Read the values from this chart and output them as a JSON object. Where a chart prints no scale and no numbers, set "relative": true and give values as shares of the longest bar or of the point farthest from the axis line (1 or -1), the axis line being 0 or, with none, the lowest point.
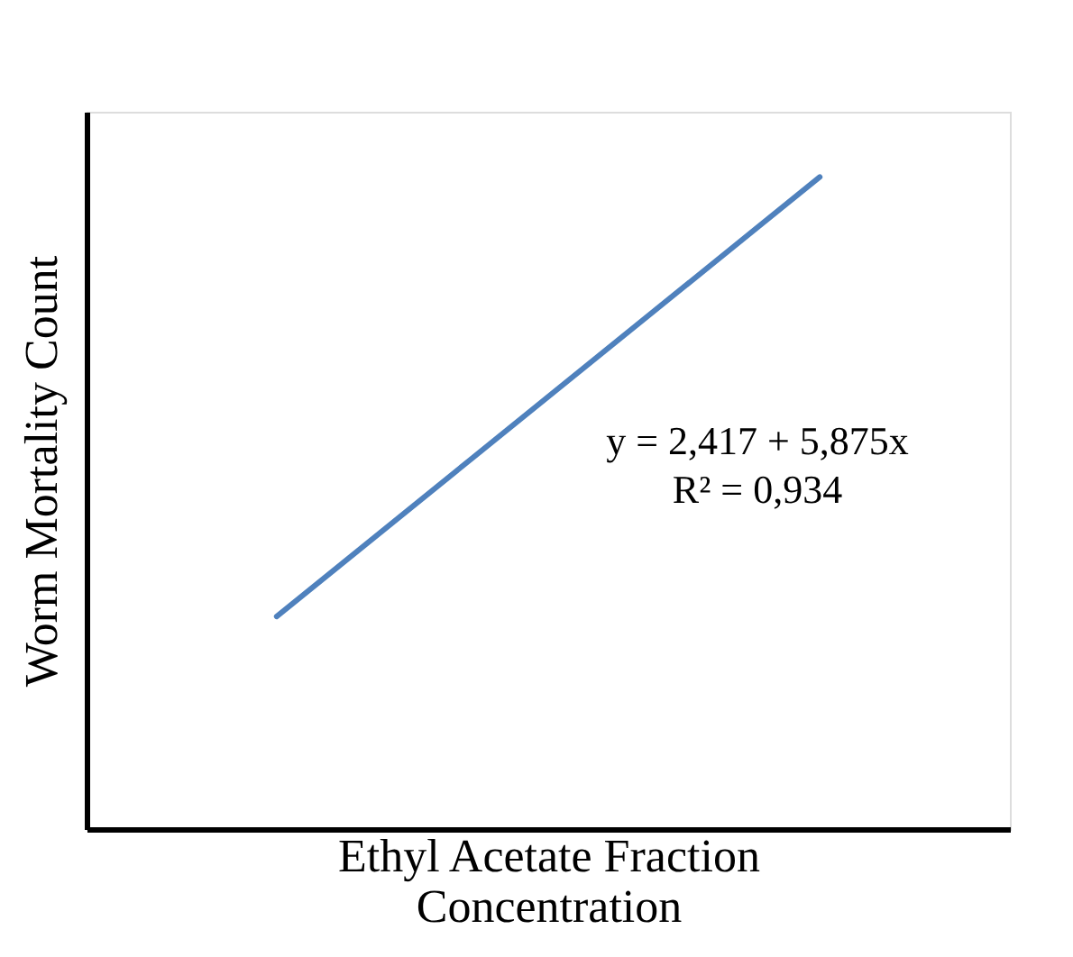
{
  "chart_data": {
    "type": "line",
    "relative": true,
    "categories": [
      null,
      null
    ],
    "series": [
      {
        "color": "#4f81bd",
        "values": [
          0.326,
          1
        ]
      }
    ],
    "xlabel": "Ethyl Acetate Fraction Concentration",
    "ylabel": "Worm Mortality Count",
    "annotations": [
      "y = 2,417 + 5,875x",
      "R² = 0,934"
    ],
    "grid": false,
    "tick_labels": false,
    "marker": "none"
  }
}
